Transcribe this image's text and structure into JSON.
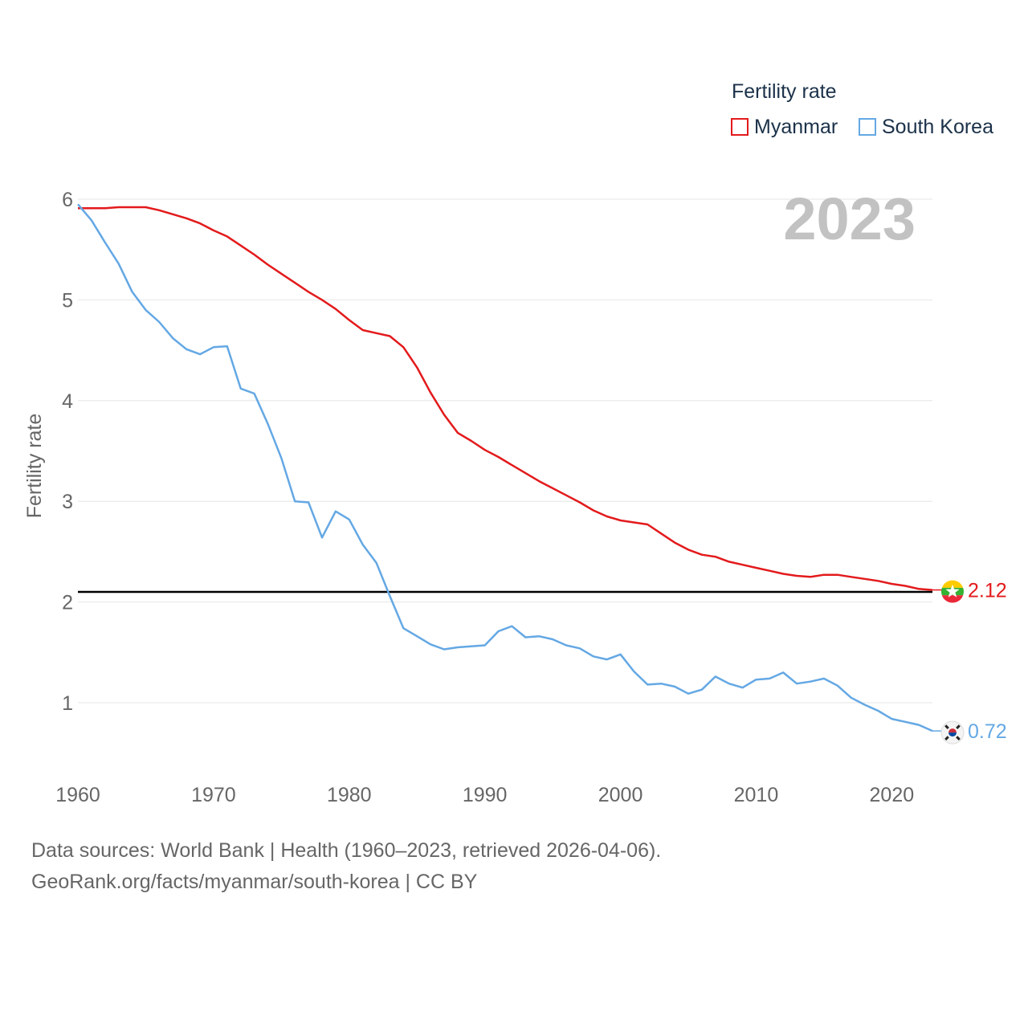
{
  "legend": {
    "title": "Fertility rate",
    "items": [
      {
        "label": "Myanmar",
        "color": "#e31a1c"
      },
      {
        "label": "South Korea",
        "color": "#64a8e4"
      }
    ]
  },
  "footer": {
    "line1": "Data sources: World Bank | Health (1960–2023, retrieved 2026-04-06).",
    "line2": "GeoRank.org/facts/myanmar/south-korea | CC BY"
  },
  "colors": {
    "myanmar": "#e31a1c",
    "south_korea": "#64a8e4",
    "year_watermark": "#c2c2c2",
    "reference_line": "#000000",
    "grid": "#e6e6e6",
    "axis_text": "#666666"
  },
  "chart_data": {
    "type": "line",
    "title": "Fertility rate",
    "xlabel": "",
    "ylabel": "Fertility rate",
    "year_label": "2023",
    "xlim": [
      1960,
      2023
    ],
    "ylim": [
      0.5,
      6.1
    ],
    "x_ticks": [
      1960,
      1970,
      1980,
      1990,
      2000,
      2010,
      2020
    ],
    "y_ticks": [
      1,
      2,
      3,
      4,
      5,
      6
    ],
    "grid": true,
    "legend_position": "top-right",
    "reference_line": {
      "y": 2.1,
      "label": ""
    },
    "x": [
      1960,
      1961,
      1962,
      1963,
      1964,
      1965,
      1966,
      1967,
      1968,
      1969,
      1970,
      1971,
      1972,
      1973,
      1974,
      1975,
      1976,
      1977,
      1978,
      1979,
      1980,
      1981,
      1982,
      1983,
      1984,
      1985,
      1986,
      1987,
      1988,
      1989,
      1990,
      1991,
      1992,
      1993,
      1994,
      1995,
      1996,
      1997,
      1998,
      1999,
      2000,
      2001,
      2002,
      2003,
      2004,
      2005,
      2006,
      2007,
      2008,
      2009,
      2010,
      2011,
      2012,
      2013,
      2014,
      2015,
      2016,
      2017,
      2018,
      2019,
      2020,
      2021,
      2022,
      2023
    ],
    "series": [
      {
        "name": "Myanmar",
        "color": "#e31a1c",
        "end_label": "2.12",
        "values": [
          5.91,
          5.91,
          5.91,
          5.92,
          5.92,
          5.92,
          5.89,
          5.85,
          5.81,
          5.76,
          5.69,
          5.63,
          5.54,
          5.45,
          5.35,
          5.26,
          5.17,
          5.08,
          5.0,
          4.91,
          4.8,
          4.7,
          4.67,
          4.64,
          4.53,
          4.33,
          4.08,
          3.86,
          3.68,
          3.6,
          3.51,
          3.44,
          3.36,
          3.28,
          3.2,
          3.13,
          3.06,
          2.99,
          2.91,
          2.85,
          2.81,
          2.79,
          2.77,
          2.68,
          2.59,
          2.52,
          2.47,
          2.45,
          2.4,
          2.37,
          2.34,
          2.31,
          2.28,
          2.26,
          2.25,
          2.27,
          2.27,
          2.25,
          2.23,
          2.21,
          2.18,
          2.16,
          2.13,
          2.12
        ]
      },
      {
        "name": "South Korea",
        "color": "#64a8e4",
        "end_label": "0.72",
        "values": [
          5.95,
          5.79,
          5.57,
          5.36,
          5.08,
          4.9,
          4.78,
          4.62,
          4.51,
          4.46,
          4.53,
          4.54,
          4.12,
          4.07,
          3.77,
          3.43,
          3.0,
          2.99,
          2.64,
          2.9,
          2.82,
          2.57,
          2.39,
          2.06,
          1.74,
          1.66,
          1.58,
          1.53,
          1.55,
          1.56,
          1.57,
          1.71,
          1.76,
          1.65,
          1.66,
          1.63,
          1.57,
          1.54,
          1.46,
          1.43,
          1.48,
          1.31,
          1.18,
          1.19,
          1.16,
          1.09,
          1.13,
          1.26,
          1.19,
          1.15,
          1.23,
          1.24,
          1.3,
          1.19,
          1.21,
          1.24,
          1.17,
          1.05,
          0.98,
          0.92,
          0.84,
          0.81,
          0.78,
          0.72
        ]
      }
    ]
  }
}
